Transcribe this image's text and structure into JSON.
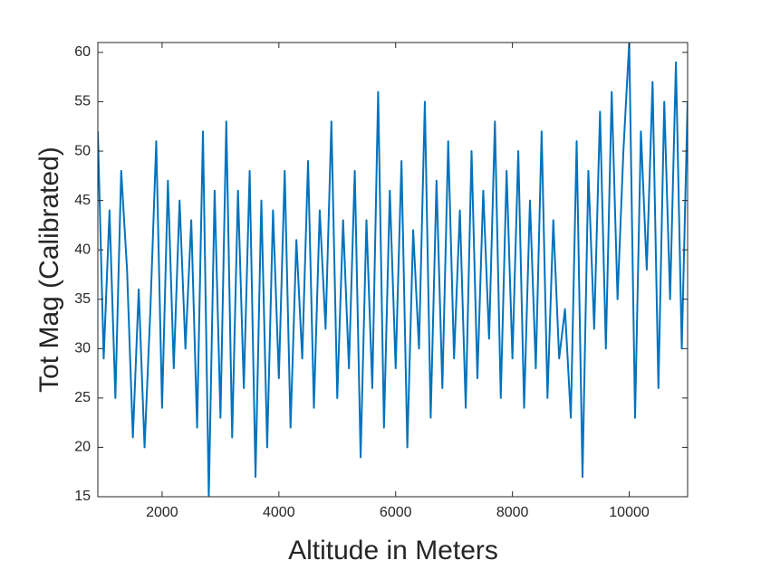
{
  "chart_data": {
    "type": "line",
    "xlabel": "Altitude in Meters",
    "ylabel": "Tot Mag (Calibrated)",
    "x": [
      900,
      1000,
      1100,
      1200,
      1300,
      1400,
      1500,
      1600,
      1700,
      1800,
      1900,
      2000,
      2100,
      2200,
      2300,
      2400,
      2500,
      2600,
      2700,
      2800,
      2900,
      3000,
      3100,
      3200,
      3300,
      3400,
      3500,
      3600,
      3700,
      3800,
      3900,
      4000,
      4100,
      4200,
      4300,
      4400,
      4500,
      4600,
      4700,
      4800,
      4900,
      5000,
      5100,
      5200,
      5300,
      5400,
      5500,
      5600,
      5700,
      5800,
      5900,
      6000,
      6100,
      6200,
      6300,
      6400,
      6500,
      6600,
      6700,
      6800,
      6900,
      7000,
      7100,
      7200,
      7300,
      7400,
      7500,
      7600,
      7700,
      7800,
      7900,
      8000,
      8100,
      8200,
      8300,
      8400,
      8500,
      8600,
      8700,
      8800,
      8900,
      9000,
      9100,
      9200,
      9300,
      9400,
      9500,
      9600,
      9700,
      9800,
      9900,
      10000,
      10100,
      10200,
      10300,
      10400,
      10500,
      10600,
      10700,
      10800,
      10900,
      11000
    ],
    "series": [
      {
        "name": "Tot Mag",
        "color": "#0072bd",
        "values": [
          52,
          29,
          44,
          25,
          48,
          38,
          21,
          36,
          20,
          34,
          51,
          24,
          47,
          28,
          45,
          30,
          43,
          22,
          52,
          15,
          46,
          23,
          53,
          21,
          46,
          26,
          48,
          17,
          45,
          20,
          44,
          27,
          48,
          22,
          41,
          29,
          49,
          24,
          44,
          32,
          53,
          25,
          43,
          28,
          48,
          19,
          43,
          26,
          56,
          22,
          46,
          28,
          49,
          20,
          42,
          30,
          55,
          23,
          47,
          26,
          51,
          29,
          44,
          24,
          50,
          27,
          46,
          31,
          53,
          25,
          48,
          29,
          50,
          24,
          45,
          28,
          52,
          25,
          43,
          29,
          34,
          23,
          51,
          17,
          48,
          32,
          54,
          30,
          56,
          35,
          50,
          61,
          23,
          52,
          38,
          57,
          26,
          55,
          35,
          59,
          30,
          55
        ]
      }
    ],
    "xlim": [
      900,
      11000
    ],
    "ylim": [
      15,
      61
    ],
    "xticks": [
      2000,
      4000,
      6000,
      8000,
      10000
    ],
    "yticks": [
      15,
      20,
      25,
      30,
      35,
      40,
      45,
      50,
      55,
      60
    ],
    "grid": false
  }
}
